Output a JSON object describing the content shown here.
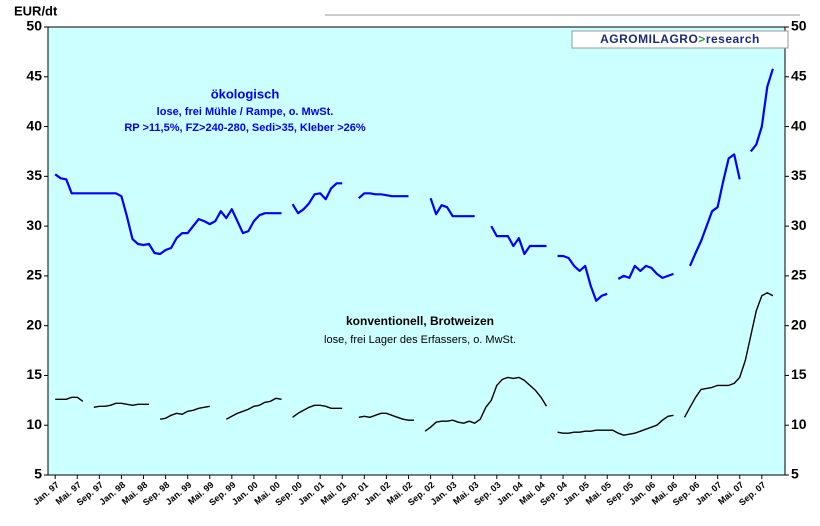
{
  "chart_data": {
    "type": "line",
    "y_label": "EUR/dt",
    "logo": {
      "brand": "AGROMILAGRO",
      "arrow": ">",
      "suffix": "research"
    },
    "annotations": {
      "organic_sub1": "lose, frei Mühle / Rampe, o. MwSt.",
      "organic_sub2": "RP >11,5%, FZ>240-280, Sedi>35, Kleber >26%",
      "conventional_sub": "lose, frei Lager des Erfassers, o. MwSt."
    },
    "categories": [
      "Jan. 97",
      null,
      null,
      null,
      "Mai. 97",
      null,
      null,
      null,
      "Sep. 97",
      null,
      null,
      null,
      "Jan. 98",
      null,
      null,
      null,
      "Mai. 98",
      null,
      null,
      null,
      "Sep. 98",
      null,
      null,
      null,
      "Jan. 99",
      null,
      null,
      null,
      "Mai. 99",
      null,
      null,
      null,
      "Sep. 99",
      null,
      null,
      null,
      "Jan. 00",
      null,
      null,
      null,
      "Mai. 00",
      null,
      null,
      null,
      "Sep. 00",
      null,
      null,
      null,
      "Jan. 01",
      null,
      null,
      null,
      "Mai. 01",
      null,
      null,
      null,
      "Sep. 01",
      null,
      null,
      null,
      "Jan. 02",
      null,
      null,
      null,
      "Mai. 02",
      null,
      null,
      null,
      "Sep. 02",
      null,
      null,
      null,
      "Jan. 03",
      null,
      null,
      null,
      "Mai. 03",
      null,
      null,
      null,
      "Sep. 03",
      null,
      null,
      null,
      "Jan. 04",
      null,
      null,
      null,
      "Mai. 04",
      null,
      null,
      null,
      "Sep. 04",
      null,
      null,
      null,
      "Jan. 05",
      null,
      null,
      null,
      "Mai. 05",
      null,
      null,
      null,
      "Sep. 05",
      null,
      null,
      null,
      "Jan. 06",
      null,
      null,
      null,
      "Mai. 06",
      null,
      null,
      null,
      "Sep. 06",
      null,
      null,
      null,
      "Jan. 07",
      null,
      null,
      null,
      "Mai. 07",
      null,
      null,
      null,
      "Sep. 07",
      null,
      null,
      null
    ],
    "series": [
      {
        "name": "ökologisch",
        "color": "#0000ff",
        "values": [
          35.2,
          34.8,
          34.7,
          33.3,
          33.3,
          33.3,
          33.3,
          33.3,
          33.3,
          33.3,
          33.3,
          33.3,
          33.0,
          31.0,
          28.7,
          28.2,
          28.1,
          28.2,
          27.3,
          27.2,
          27.6,
          27.8,
          28.8,
          29.3,
          29.3,
          30.0,
          30.7,
          30.5,
          30.2,
          30.5,
          31.5,
          30.8,
          31.7,
          30.5,
          29.3,
          29.5,
          30.5,
          31.1,
          31.3,
          31.3,
          31.3,
          31.3,
          null,
          32.2,
          31.3,
          31.7,
          32.3,
          33.2,
          33.3,
          32.7,
          33.8,
          34.3,
          34.3,
          null,
          null,
          32.8,
          33.3,
          33.3,
          33.2,
          33.2,
          33.1,
          33.0,
          33.0,
          33.0,
          33.0,
          null,
          null,
          null,
          32.8,
          31.2,
          32.1,
          31.9,
          31.0,
          31.0,
          31.0,
          31.0,
          31.0,
          null,
          null,
          30.0,
          29.0,
          29.0,
          29.0,
          28.0,
          28.8,
          27.2,
          28.0,
          28.0,
          28.0,
          28.0,
          null,
          27.0,
          27.0,
          26.8,
          26.0,
          25.5,
          26.0,
          24.0,
          22.5,
          23.0,
          23.2,
          null,
          24.7,
          25.0,
          24.8,
          26.0,
          25.5,
          26.0,
          25.8,
          25.2,
          24.8,
          25.0,
          25.2,
          null,
          null,
          26.0,
          27.3,
          28.5,
          30.0,
          31.5,
          31.9,
          34.5,
          36.8,
          37.2,
          34.7,
          null,
          37.5,
          38.2,
          40.0,
          44.0,
          45.8,
          null
        ]
      },
      {
        "name": "konventionell, Brotweizen",
        "color": "#000000",
        "values": [
          12.6,
          12.6,
          12.6,
          12.8,
          12.8,
          12.4,
          null,
          11.8,
          11.9,
          11.9,
          12.0,
          12.2,
          12.2,
          12.1,
          12.0,
          12.1,
          12.1,
          12.1,
          null,
          10.6,
          10.7,
          11.0,
          11.2,
          11.1,
          11.4,
          11.5,
          11.7,
          11.8,
          11.9,
          null,
          null,
          10.6,
          10.9,
          11.2,
          11.4,
          11.6,
          11.9,
          12.0,
          12.3,
          12.4,
          12.7,
          12.6,
          null,
          10.8,
          11.2,
          11.5,
          11.8,
          12.0,
          12.0,
          11.9,
          11.7,
          11.7,
          11.7,
          null,
          null,
          10.8,
          10.9,
          10.8,
          11.0,
          11.2,
          11.2,
          11.0,
          10.8,
          10.6,
          10.5,
          10.5,
          null,
          9.4,
          9.8,
          10.3,
          10.4,
          10.4,
          10.5,
          10.3,
          10.2,
          10.4,
          10.2,
          10.6,
          11.8,
          12.5,
          14.0,
          14.6,
          14.8,
          14.7,
          14.8,
          14.5,
          14.0,
          13.5,
          12.8,
          11.9,
          null,
          9.3,
          9.2,
          9.2,
          9.3,
          9.3,
          9.4,
          9.4,
          9.5,
          9.5,
          9.5,
          9.5,
          9.2,
          9.0,
          9.1,
          9.2,
          9.4,
          9.6,
          9.8,
          10.0,
          10.5,
          10.9,
          11.0,
          null,
          10.8,
          11.8,
          12.8,
          13.6,
          13.7,
          13.8,
          14.0,
          14.0,
          14.0,
          14.2,
          14.8,
          16.5,
          19.0,
          21.5,
          23.0,
          23.3,
          23.0,
          null
        ]
      }
    ],
    "ylim": [
      5,
      50
    ],
    "yticks": [
      5,
      10,
      15,
      20,
      25,
      30,
      35,
      40,
      45,
      50
    ],
    "right_axis": true,
    "grid": false,
    "plot_background": "#ccffff"
  }
}
